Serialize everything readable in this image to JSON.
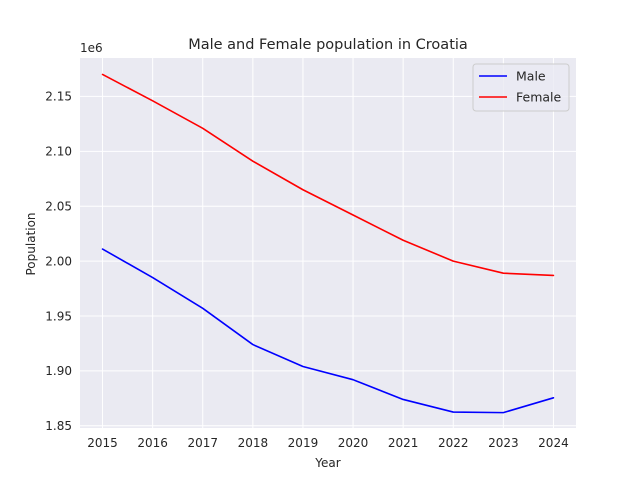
{
  "chart_data": {
    "type": "line",
    "title": "Male and Female population in Croatia",
    "xlabel": "Year",
    "ylabel": "Population",
    "y_offset_label": "1e6",
    "x": [
      2015,
      2016,
      2017,
      2018,
      2019,
      2020,
      2021,
      2022,
      2023,
      2024
    ],
    "x_ticks": [
      "2015",
      "2016",
      "2017",
      "2018",
      "2019",
      "2020",
      "2021",
      "2022",
      "2023",
      "2024"
    ],
    "y_ticks": [
      1.85,
      1.9,
      1.95,
      2.0,
      2.05,
      2.1,
      2.15
    ],
    "y_tick_labels": [
      "1.85",
      "1.90",
      "1.95",
      "2.00",
      "2.05",
      "2.10",
      "2.15"
    ],
    "ylim": [
      1.848,
      2.185
    ],
    "xlim": [
      2014.55,
      2024.45
    ],
    "grid": true,
    "legend_position": "top-right",
    "background_color": "#eaeaf2",
    "grid_color": "#ffffff",
    "series": [
      {
        "name": "Male",
        "color": "#0000ff",
        "values": [
          2.011,
          1.985,
          1.957,
          1.924,
          1.904,
          1.892,
          1.874,
          1.8625,
          1.862,
          1.8755
        ]
      },
      {
        "name": "Female",
        "color": "#ff0000",
        "values": [
          2.17,
          2.146,
          2.121,
          2.091,
          2.065,
          2.042,
          2.019,
          2.0,
          1.989,
          1.987
        ]
      }
    ]
  }
}
